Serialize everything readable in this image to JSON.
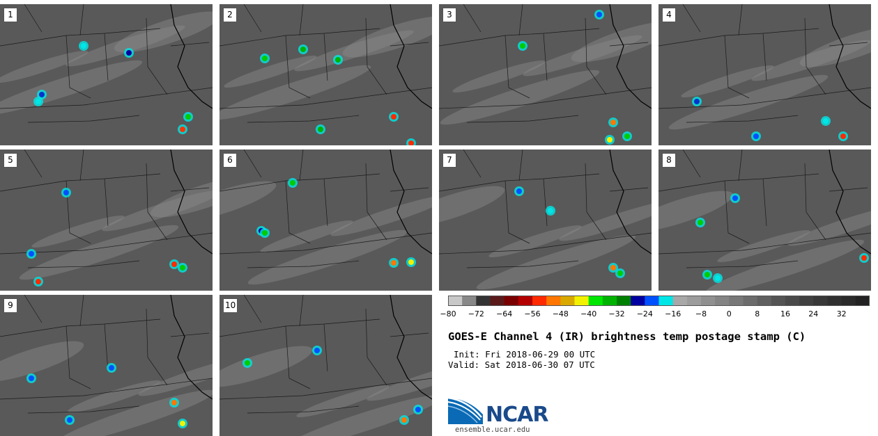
{
  "panels": [
    {
      "label": "1"
    },
    {
      "label": "2"
    },
    {
      "label": "3"
    },
    {
      "label": "4"
    },
    {
      "label": "5"
    },
    {
      "label": "6"
    },
    {
      "label": "7"
    },
    {
      "label": "8"
    },
    {
      "label": "9"
    },
    {
      "label": "10"
    }
  ],
  "colorbar": {
    "ticks": [
      "−80",
      "−72",
      "−64",
      "−56",
      "−48",
      "−40",
      "−32",
      "−24",
      "−16",
      "−8",
      "0",
      "8",
      "16",
      "24",
      "32"
    ],
    "colors": [
      "#c8c8c8",
      "#888888",
      "#333333",
      "#5a1a1a",
      "#7a0000",
      "#b30000",
      "#ff2a00",
      "#ff7700",
      "#d9a900",
      "#f2f200",
      "#00e600",
      "#00b300",
      "#008000",
      "#0000a0",
      "#0050ff",
      "#00e6e6",
      "#a8a8a8",
      "#9c9c9c",
      "#909090",
      "#848484",
      "#787878",
      "#6c6c6c",
      "#606060",
      "#545454",
      "#4a4a4a",
      "#404040",
      "#383838",
      "#303030",
      "#2a2a2a",
      "#222222"
    ]
  },
  "title": "GOES-E Channel 4 (IR) brightness temp postage stamp (C)",
  "init_text": "Init: Fri 2018-06-29 00 UTC",
  "valid_text": "Valid: Sat 2018-06-30 07 UTC",
  "logo": {
    "text": "NCAR",
    "url": "ensemble.ucar.edu"
  }
}
